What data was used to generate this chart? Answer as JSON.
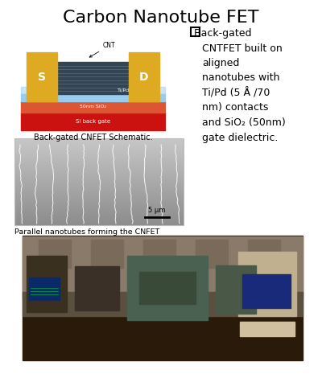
{
  "title": "Carbon Nanotube FET",
  "title_fontsize": 16,
  "background_color": "#ffffff",
  "border_color": "#aaccdd",
  "bullet_lines": [
    " Back-gated",
    "CNTFET built on",
    "aligned",
    "nanotubes with",
    "Ti/Pd (5 Å /70",
    "nm) contacts",
    "and SiO₂ (50nm)",
    "gate dielectric."
  ],
  "caption_schematic": "Back-gated CNFET Schematic.",
  "caption_nanotube": "Parallel nanotubes forming the CNFET",
  "fig_width": 4.0,
  "fig_height": 4.7,
  "dpi": 100,
  "schematic": {
    "red_color": "#cc1111",
    "orange_color": "#dd5533",
    "blue_color": "#99ccee",
    "gold_color": "#ddaa22",
    "cnt_color": "#334455",
    "cnt_line_color": "#556677"
  },
  "sem": {
    "bg_light": 0.78,
    "bg_dark": 0.55,
    "line_color": "#ffffff"
  },
  "lab": {
    "bg_color": "#2a1a0a",
    "wall_color": "#8a7a6a",
    "table_color": "#5a5040",
    "screen_color": "#1a3a8a"
  }
}
